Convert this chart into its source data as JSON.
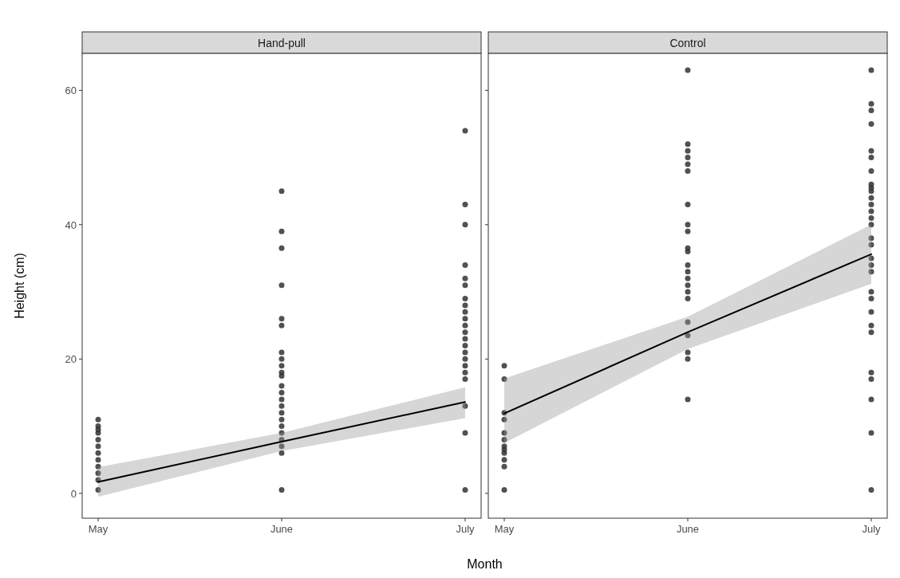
{
  "chart_data": [
    {
      "type": "scatter",
      "title": "Hand-pull",
      "xlabel": "Month",
      "ylabel": "Height (cm)",
      "categories": [
        "May",
        "June",
        "July"
      ],
      "ylim": [
        -3.7,
        65.5
      ],
      "yticks": [
        0,
        20,
        40,
        60
      ],
      "series": [
        {
          "color": "#333333",
          "marker": "circle",
          "x": [
            "May",
            "May",
            "May",
            "May",
            "May",
            "May",
            "May",
            "May",
            "May",
            "May",
            "May",
            "May",
            "June",
            "June",
            "June",
            "June",
            "June",
            "June",
            "June",
            "June",
            "June",
            "June",
            "June",
            "June",
            "June",
            "June",
            "June",
            "June",
            "June",
            "June",
            "June",
            "June",
            "June",
            "June",
            "June",
            "July",
            "July",
            "July",
            "July",
            "July",
            "July",
            "July",
            "July",
            "July",
            "July",
            "July",
            "July",
            "July",
            "July",
            "July",
            "July",
            "July",
            "July",
            "July",
            "July",
            "July",
            "July"
          ],
          "values": [
            11,
            10,
            9.5,
            9,
            8,
            7,
            6,
            5,
            4,
            3,
            2,
            0.5,
            45,
            39,
            36.5,
            31,
            26,
            25,
            21,
            20,
            19,
            18,
            17.5,
            16,
            15,
            14,
            13,
            12,
            11,
            10,
            9,
            8,
            7,
            6,
            0.5,
            54,
            43,
            40,
            34,
            32,
            31,
            29,
            28,
            27,
            26,
            25,
            24,
            23,
            22,
            21,
            20,
            19,
            18,
            17,
            13,
            9,
            0.5
          ]
        },
        {
          "type": "line",
          "color": "#000000",
          "marker": "none",
          "values": [
            1.7,
            7.7,
            13.6
          ],
          "lower": [
            -0.5,
            6.3,
            11.2
          ],
          "upper": [
            3.9,
            9,
            15.8
          ]
        }
      ]
    },
    {
      "type": "scatter",
      "title": "Control",
      "categories": [
        "May",
        "June",
        "July"
      ],
      "ylim": [
        -3.7,
        65.5
      ],
      "yticks": [
        0,
        20,
        40,
        60
      ],
      "tick_labels": "x",
      "series": [
        {
          "color": "#333333",
          "marker": "circle",
          "x": [
            "May",
            "May",
            "May",
            "May",
            "May",
            "May",
            "May",
            "May",
            "May",
            "May",
            "May",
            "May",
            "June",
            "June",
            "June",
            "June",
            "June",
            "June",
            "June",
            "June",
            "June",
            "June",
            "June",
            "June",
            "June",
            "June",
            "June",
            "June",
            "June",
            "June",
            "June",
            "June",
            "June",
            "June",
            "July",
            "July",
            "July",
            "July",
            "July",
            "July",
            "July",
            "July",
            "July",
            "July",
            "July",
            "July",
            "July",
            "July",
            "July",
            "July",
            "July",
            "July",
            "July",
            "July",
            "July",
            "July",
            "July",
            "July",
            "July",
            "July",
            "July",
            "July",
            "July",
            "July"
          ],
          "values": [
            19,
            17,
            12,
            11,
            9,
            8,
            7,
            6.5,
            6,
            5,
            4,
            0.5,
            63,
            52,
            51,
            50,
            49,
            48,
            43,
            40,
            39,
            36.5,
            36,
            34,
            33,
            32,
            31,
            30,
            29,
            25.5,
            23.5,
            21,
            20,
            14,
            63,
            58,
            57,
            55,
            51,
            50,
            48,
            46,
            45.5,
            45,
            44,
            43,
            42,
            41,
            40,
            38,
            37,
            35,
            34,
            33,
            30,
            29,
            27,
            25,
            24,
            18,
            17,
            14,
            9,
            0.5
          ]
        },
        {
          "type": "line",
          "color": "#000000",
          "marker": "none",
          "values": [
            11.9,
            24,
            35.6
          ],
          "lower": [
            7.5,
            21.5,
            31.2
          ],
          "upper": [
            17.1,
            26.3,
            40
          ]
        }
      ]
    }
  ]
}
